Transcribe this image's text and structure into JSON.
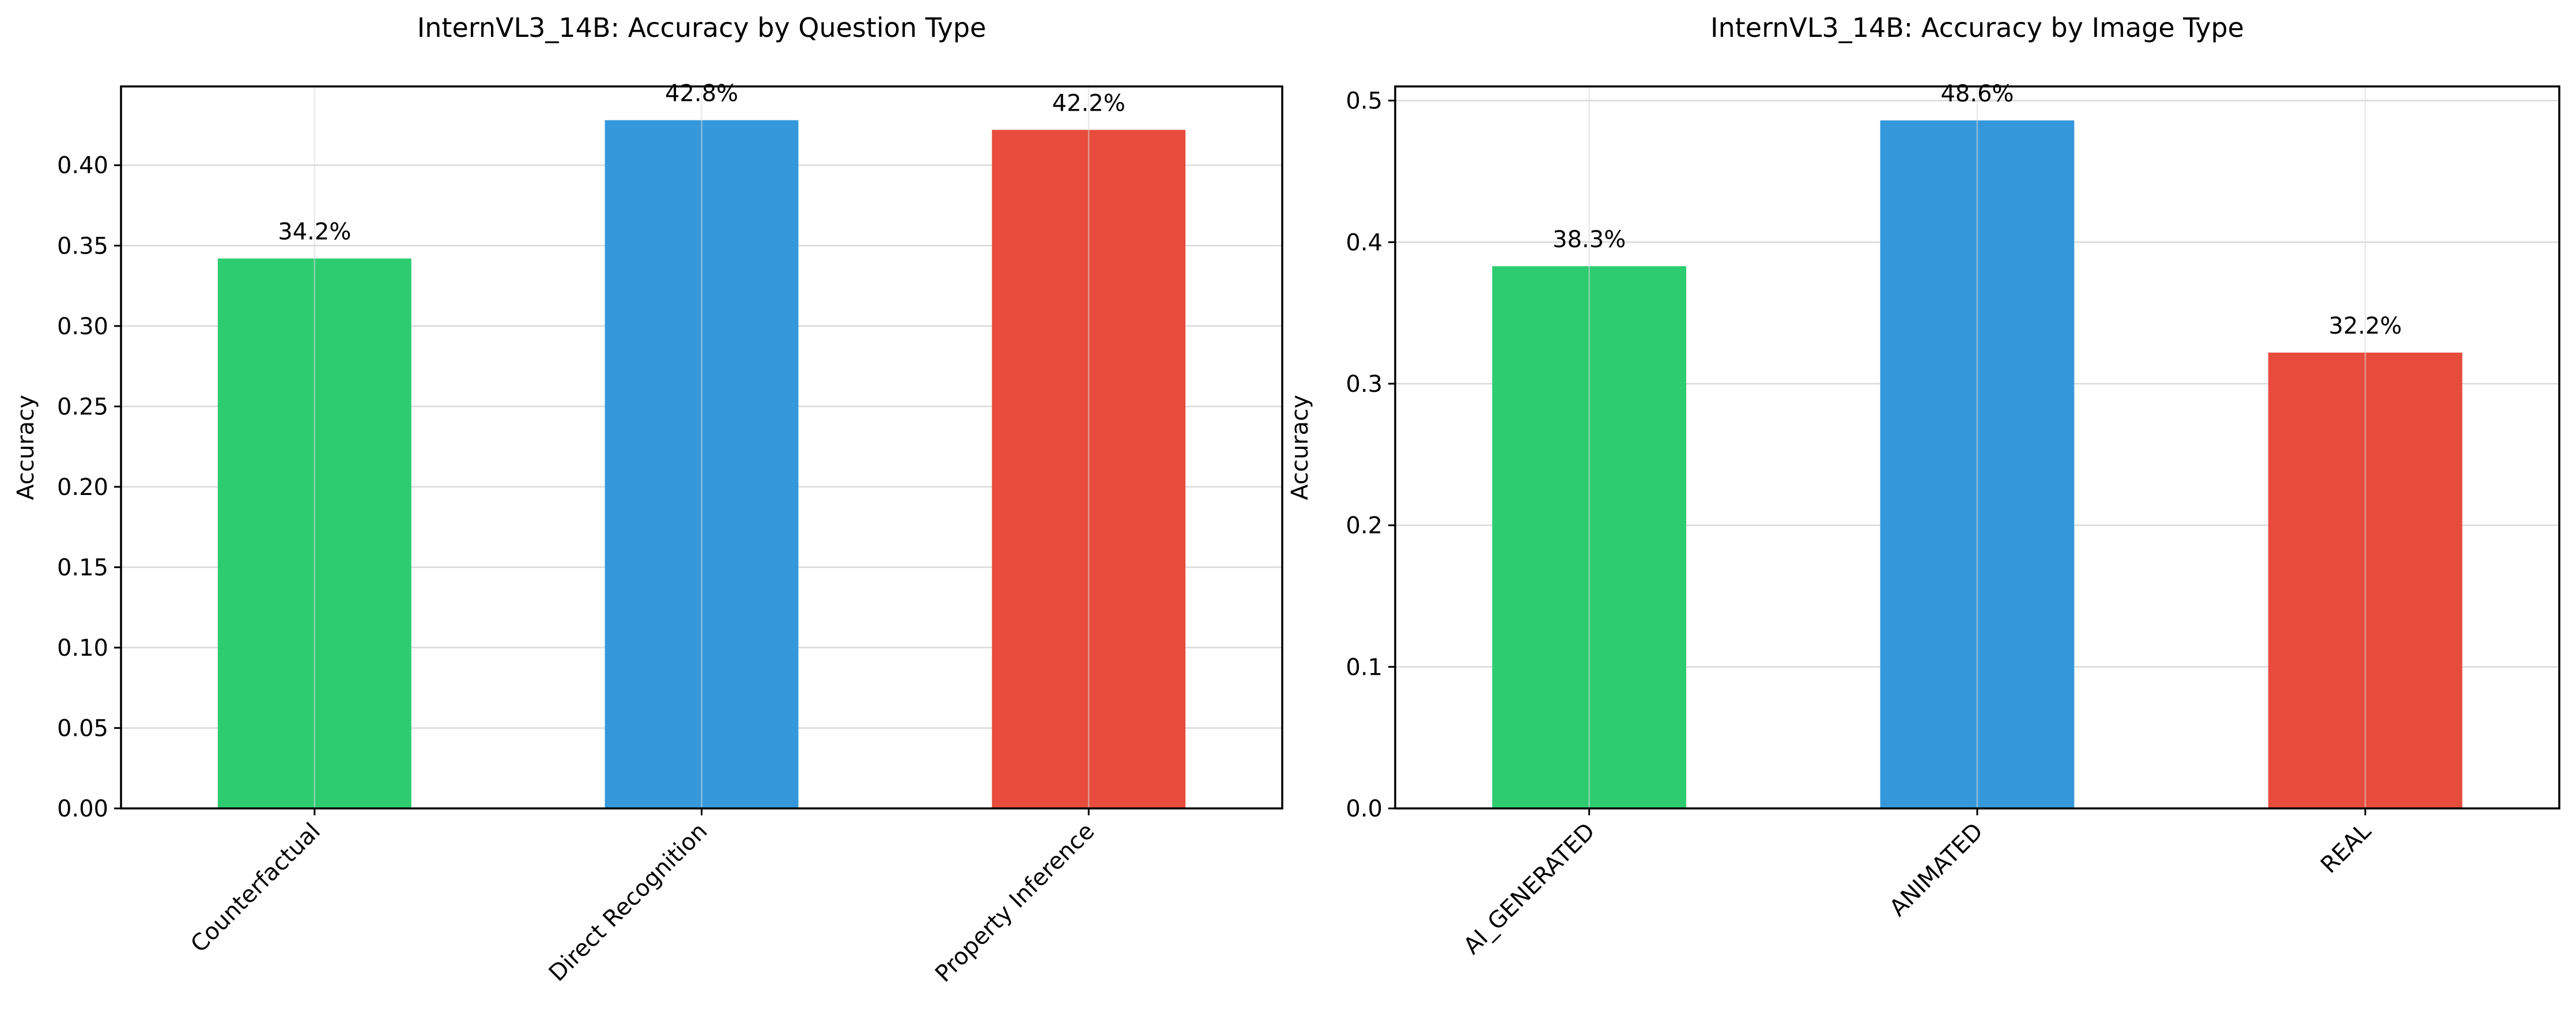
{
  "chart_data": [
    {
      "type": "bar",
      "title": "InternVL3_14B: Accuracy by Question Type",
      "xlabel": "",
      "ylabel": "Accuracy",
      "categories": [
        "Counterfactual",
        "Direct Recognition",
        "Property Inference"
      ],
      "values": [
        0.342,
        0.428,
        0.422
      ],
      "value_labels": [
        "34.2%",
        "42.8%",
        "42.2%"
      ],
      "colors": [
        "#2ecc71",
        "#3498db",
        "#e74c3c"
      ],
      "ylim": [
        0,
        0.449
      ],
      "yticks": [
        0.0,
        0.05,
        0.1,
        0.15,
        0.2,
        0.25,
        0.3,
        0.35,
        0.4
      ],
      "ytick_labels": [
        "0.00",
        "0.05",
        "0.10",
        "0.15",
        "0.20",
        "0.25",
        "0.30",
        "0.35",
        "0.40"
      ],
      "grid": true,
      "xtick_rotation": 45
    },
    {
      "type": "bar",
      "title": "InternVL3_14B: Accuracy by Image Type",
      "xlabel": "",
      "ylabel": "Accuracy",
      "categories": [
        "AI_GENERATED",
        "ANIMATED",
        "REAL"
      ],
      "values": [
        0.383,
        0.486,
        0.322
      ],
      "value_labels": [
        "38.3%",
        "48.6%",
        "32.2%"
      ],
      "colors": [
        "#2ecc71",
        "#3498db",
        "#e74c3c"
      ],
      "ylim": [
        0,
        0.51
      ],
      "yticks": [
        0.0,
        0.1,
        0.2,
        0.3,
        0.4,
        0.5
      ],
      "ytick_labels": [
        "0.0",
        "0.1",
        "0.2",
        "0.3",
        "0.4",
        "0.5"
      ],
      "grid": true,
      "xtick_rotation": 45
    }
  ]
}
